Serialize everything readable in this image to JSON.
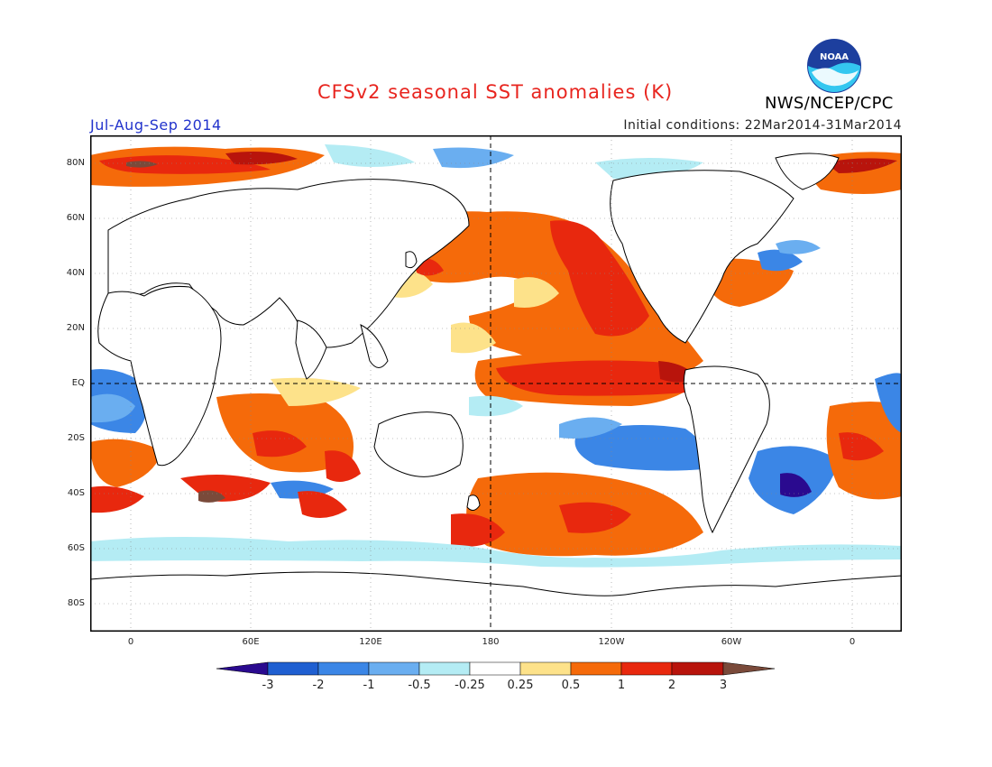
{
  "header": {
    "title": "CFSv2 seasonal SST anomalies (K)",
    "season": "Jul-Aug-Sep 2014",
    "initial_conditions": "Initial conditions: 22Mar2014-31Mar2014",
    "agency": "NWS/NCEP/CPC",
    "logo_text": "NOAA"
  },
  "axes": {
    "latitude_labels": [
      "80N",
      "60N",
      "40N",
      "20N",
      "EQ",
      "20S",
      "40S",
      "60S",
      "80S"
    ],
    "longitude_labels": [
      "0",
      "60E",
      "120E",
      "180",
      "120W",
      "60W",
      "0"
    ]
  },
  "colorbar": {
    "labels": [
      "-3",
      "-2",
      "-1",
      "-0.5",
      "-0.25",
      "0.25",
      "0.5",
      "1",
      "2",
      "3"
    ],
    "colors": [
      "#2a0a8f",
      "#1f5fd1",
      "#3b86e6",
      "#6aaef0",
      "#b4ecf4",
      "#ffffff",
      "#fde28a",
      "#f56a0a",
      "#e8280e",
      "#b8140c",
      "#7a4a3a"
    ]
  },
  "map_colors": {
    "land": "#ffffff",
    "coast": "#000000",
    "neg_strong": "#3b86e6",
    "neg_mid": "#6aaef0",
    "neg_weak": "#b4ecf4",
    "pos_weak": "#fde28a",
    "pos_mid": "#f56a0a",
    "pos_strong": "#e8280e",
    "pos_vstrong": "#b8140c",
    "extreme": "#7a4a3a"
  }
}
